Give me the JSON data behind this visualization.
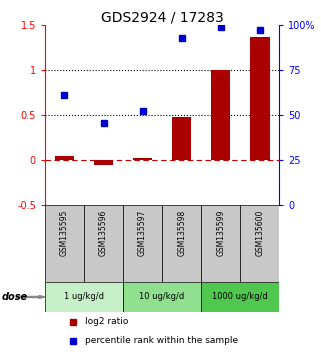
{
  "title": "GDS2924 / 17283",
  "samples": [
    "GSM135595",
    "GSM135596",
    "GSM135597",
    "GSM135598",
    "GSM135599",
    "GSM135600"
  ],
  "log2_ratio": [
    0.05,
    -0.05,
    0.03,
    0.48,
    1.0,
    1.37
  ],
  "percentile_rank_left": [
    0.72,
    0.41,
    0.55,
    1.35,
    1.47,
    1.44
  ],
  "dose_groups": [
    {
      "label": "1 ug/kg/d",
      "samples": [
        0,
        1
      ],
      "color": "#c8f0c8"
    },
    {
      "label": "10 ug/kg/d",
      "samples": [
        2,
        3
      ],
      "color": "#90e090"
    },
    {
      "label": "1000 ug/kg/d",
      "samples": [
        4,
        5
      ],
      "color": "#50c850"
    }
  ],
  "bar_color": "#aa0000",
  "square_color": "#0000cc",
  "left_ylim": [
    -0.5,
    1.5
  ],
  "right_ylim": [
    0,
    100
  ],
  "left_yticks": [
    -0.5,
    0.0,
    0.5,
    1.0,
    1.5
  ],
  "left_yticklabels": [
    "-0.5",
    "0",
    "0.5",
    "1",
    "1.5"
  ],
  "right_yticks": [
    0,
    25,
    50,
    75,
    100
  ],
  "right_yticklabels": [
    "0",
    "25",
    "50",
    "75",
    "100%"
  ],
  "hlines_dotted": [
    0.5,
    1.0
  ],
  "hline_dash": 0.0,
  "title_fontsize": 10,
  "tick_fontsize": 7,
  "sample_bg_color": "#c8c8c8",
  "dose_label": "dose"
}
